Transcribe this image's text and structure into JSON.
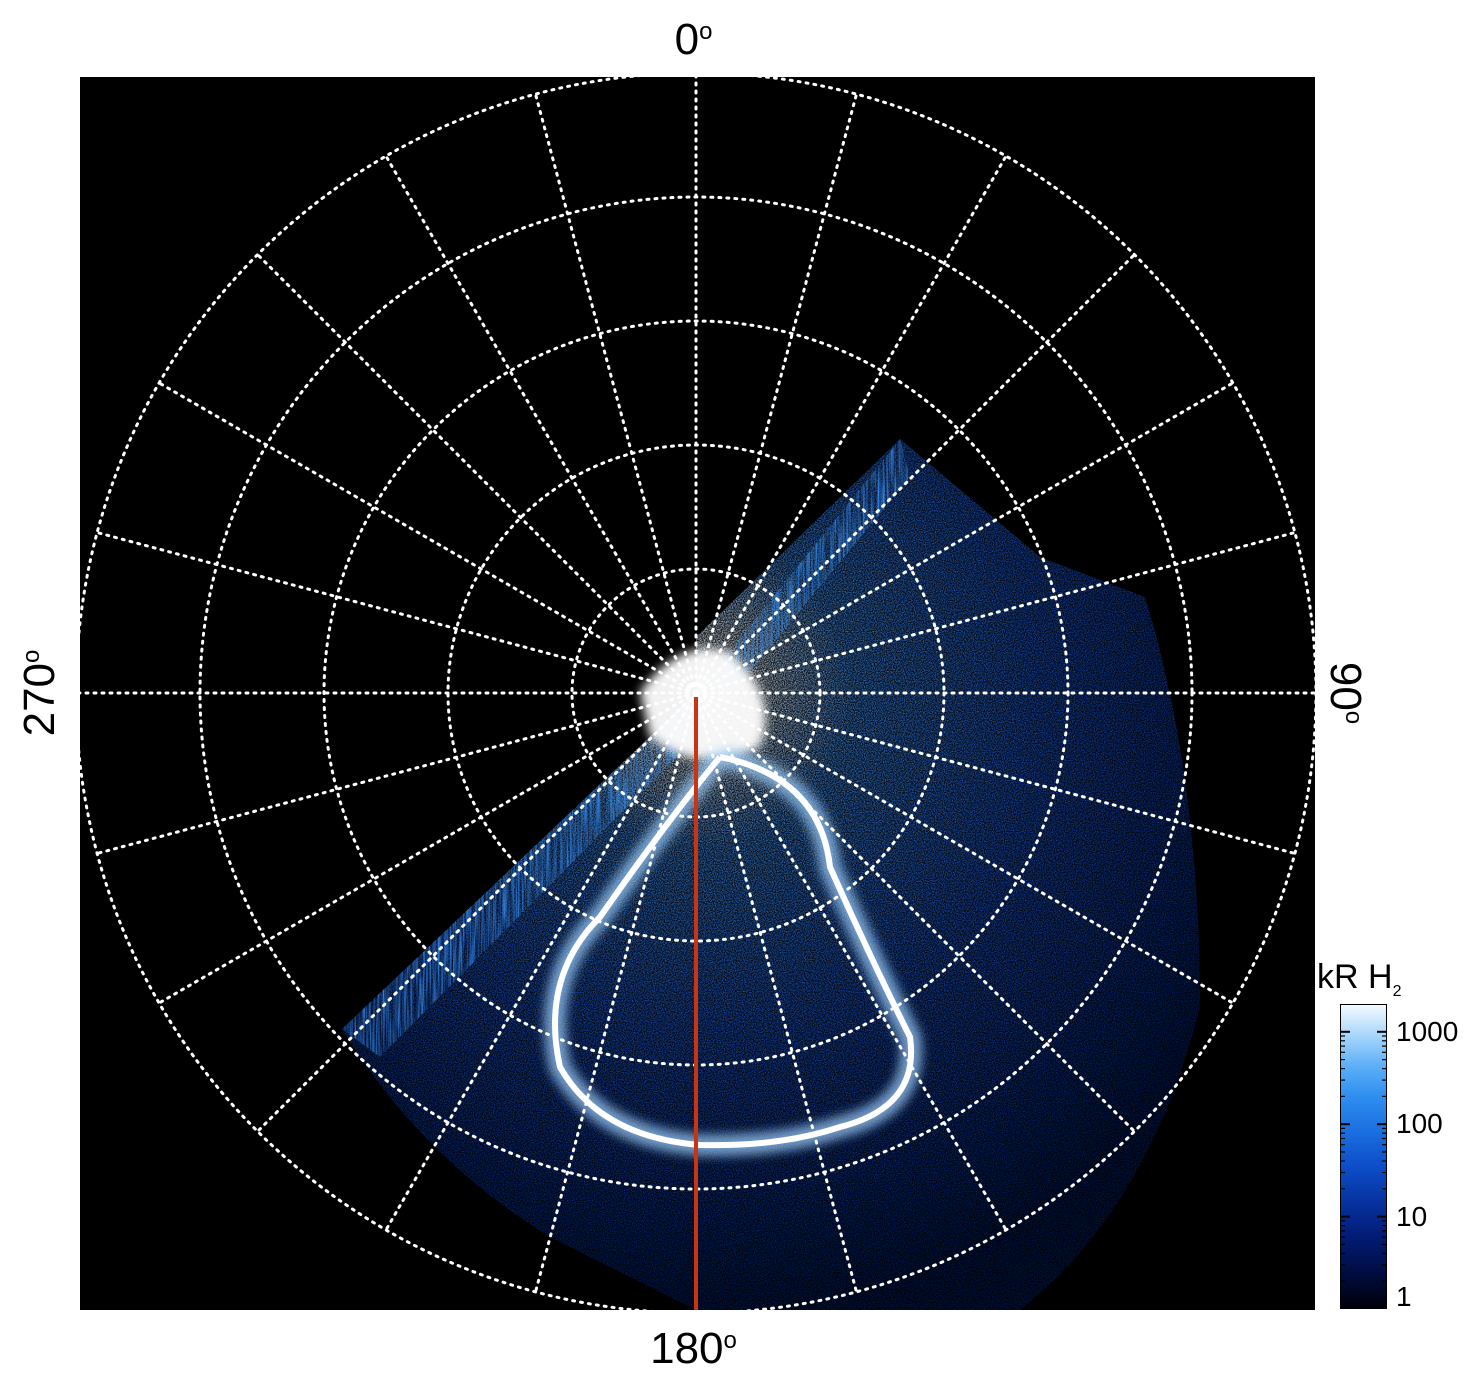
{
  "labels": {
    "top": "0",
    "bottom": "180",
    "left": "270",
    "right": "90",
    "degree_symbol": "o"
  },
  "colorbar": {
    "title_main": "kR H",
    "title_sub": "2",
    "ticks": [
      {
        "label": "1000",
        "value": 1000
      },
      {
        "label": "100",
        "value": 100
      },
      {
        "label": "10",
        "value": 10
      },
      {
        "label": "1",
        "value": 1
      }
    ],
    "range": [
      1,
      2000
    ],
    "scale": "log"
  },
  "grid": {
    "radial_lines": 24,
    "rings": 5,
    "style": "dotted",
    "color": "#ffffff"
  },
  "colors": {
    "background": "#000000",
    "aurora_dim": "#0a2a8a",
    "aurora_mid": "#1f72e8",
    "aurora_bright": "#ffffff",
    "meridian_line": "#cc3311"
  }
}
